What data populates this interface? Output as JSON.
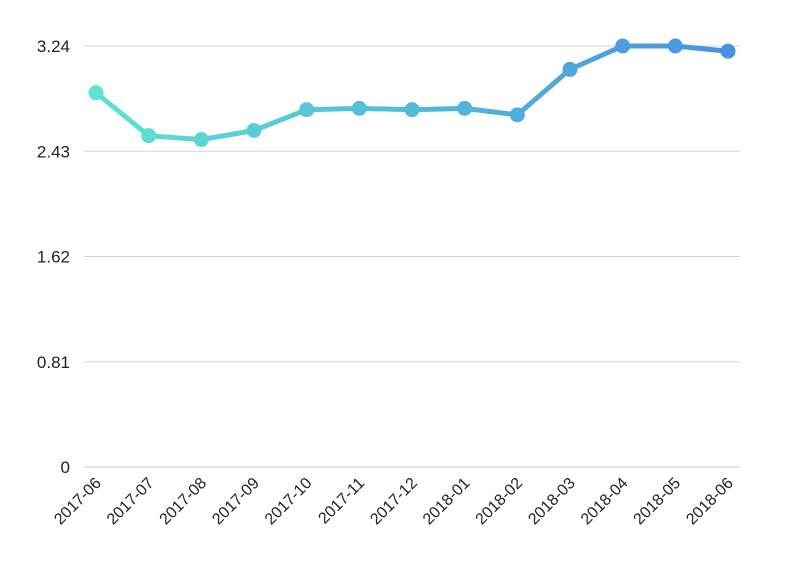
{
  "chart_data": {
    "type": "line",
    "title": "",
    "xlabel": "",
    "ylabel": "",
    "categories": [
      "2017-06",
      "2017-07",
      "2017-08",
      "2017-09",
      "2017-10",
      "2017-11",
      "2017-12",
      "2018-01",
      "2018-02",
      "2018-03",
      "2018-04",
      "2018-05",
      "2018-06"
    ],
    "series": [
      {
        "values": [
          2.88,
          2.55,
          2.52,
          2.59,
          2.75,
          2.76,
          2.75,
          2.76,
          2.71,
          3.06,
          3.24,
          3.24,
          3.2
        ]
      }
    ],
    "ylim": [
      0,
      3.24
    ],
    "yticks": [
      "0",
      "0.81",
      "1.62",
      "2.43",
      "3.24"
    ],
    "grid": true,
    "legend": "none",
    "colors": {
      "start": "#5fe3d0",
      "end": "#4a90e2",
      "grid": "#d6d6d6"
    }
  }
}
